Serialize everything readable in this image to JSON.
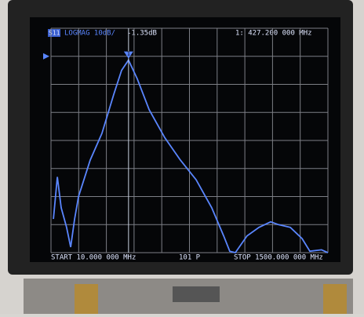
{
  "chart_data": {
    "type": "line",
    "channel_label": "S11",
    "format_label": "LOGMAG 10dB/",
    "marker_value_label": "-1.35dB",
    "marker_freq_label": "1: 427.200 000 MHz",
    "start_label": "START 10.000 000 MHz",
    "points_label": "101 P",
    "stop_label": "STOP 1500.000 000 MHz",
    "x": [
      23,
      44,
      65,
      94,
      116,
      137,
      158,
      221,
      284,
      348,
      390,
      427.2,
      474,
      538,
      622,
      706,
      791,
      875,
      939,
      972,
      1002,
      1065,
      1129,
      1192,
      1234,
      1298,
      1361,
      1403,
      1466,
      1500
    ],
    "values": [
      -58,
      -43,
      -54,
      -61,
      -68,
      -58,
      -50,
      -37,
      -27.5,
      -13.5,
      -5,
      -1.35,
      -8,
      -19,
      -29,
      -37,
      -44,
      -54,
      -64,
      -69.5,
      -70,
      -64,
      -61,
      -59,
      -60,
      -61,
      -65,
      -69.5,
      -69,
      -70
    ],
    "color": "#5a86ff",
    "marker": {
      "label": "1",
      "x": 427.2,
      "y": -1.35
    },
    "ref_level": 0,
    "xlim": [
      10,
      1500
    ],
    "ylim": [
      -70,
      10
    ],
    "xticks": [
      10,
      159,
      308,
      457,
      606,
      755,
      904,
      1053,
      1202,
      1351,
      1500
    ],
    "yticks": [
      10,
      0,
      -10,
      -20,
      -30,
      -40,
      -50,
      -60,
      -70
    ],
    "grid": true
  }
}
